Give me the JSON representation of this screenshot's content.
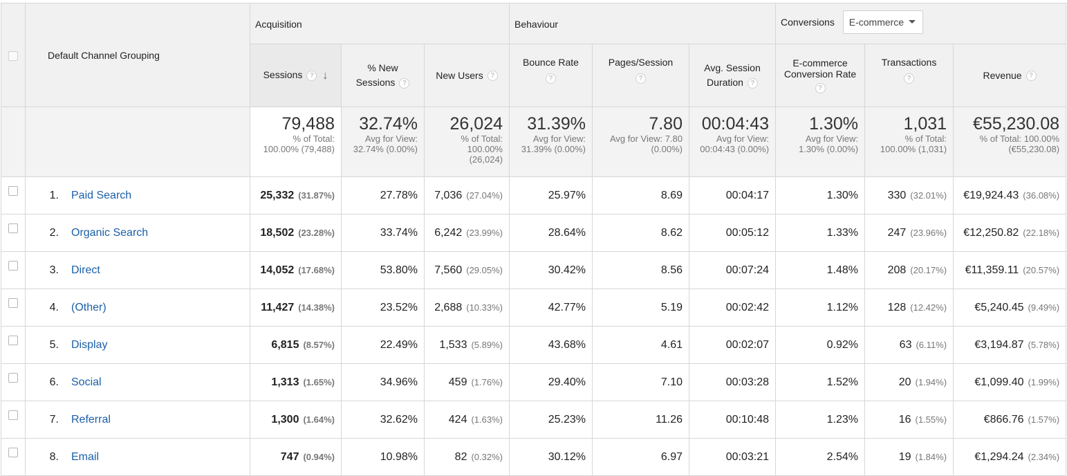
{
  "header": {
    "dimension_label": "Default Channel Grouping",
    "groups": {
      "acquisition": "Acquisition",
      "behaviour": "Behaviour",
      "conversions": "Conversions",
      "conversions_select": "E-commerce"
    },
    "columns": {
      "sessions": "Sessions",
      "pct_new_sessions_1": "% New",
      "pct_new_sessions_2": "Sessions",
      "new_users": "New Users",
      "bounce_rate": "Bounce Rate",
      "pages_session": "Pages/Session",
      "avg_duration_1": "Avg. Session",
      "avg_duration_2": "Duration",
      "ecom_rate_1": "E-commerce",
      "ecom_rate_2": "Conversion Rate",
      "transactions": "Transactions",
      "revenue": "Revenue"
    },
    "help_glyph": "?",
    "sort_glyph": "↓"
  },
  "totals": {
    "sessions": {
      "value": "79,488",
      "l1": "% of Total:",
      "l2": "100.00% (79,488)"
    },
    "pct_new_sessions": {
      "value": "32.74%",
      "l1": "Avg for View:",
      "l2": "32.74% (0.00%)"
    },
    "new_users": {
      "value": "26,024",
      "l1": "% of Total:",
      "l2": "100.00%",
      "l3": "(26,024)"
    },
    "bounce_rate": {
      "value": "31.39%",
      "l1": "Avg for View:",
      "l2": "31.39% (0.00%)"
    },
    "pages_session": {
      "value": "7.80",
      "l1": "Avg for View: 7.80",
      "l2": "(0.00%)"
    },
    "avg_duration": {
      "value": "00:04:43",
      "l1": "Avg for View:",
      "l2": "00:04:43 (0.00%)"
    },
    "ecom_rate": {
      "value": "1.30%",
      "l1": "Avg for View:",
      "l2": "1.30% (0.00%)"
    },
    "transactions": {
      "value": "1,031",
      "l1": "% of Total:",
      "l2": "100.00% (1,031)"
    },
    "revenue": {
      "value": "€55,230.08",
      "l1": "% of Total: 100.00%",
      "l2": "(€55,230.08)"
    }
  },
  "rows": [
    {
      "idx": "1.",
      "channel": "Paid Search",
      "sessions": "25,332",
      "sessions_pct": "(31.87%)",
      "pct_new": "27.78%",
      "new_users": "7,036",
      "new_users_pct": "(27.04%)",
      "bounce": "25.97%",
      "pages": "8.69",
      "duration": "00:04:17",
      "ecom": "1.30%",
      "trans": "330",
      "trans_pct": "(32.01%)",
      "revenue": "€19,924.43",
      "revenue_pct": "(36.08%)"
    },
    {
      "idx": "2.",
      "channel": "Organic Search",
      "sessions": "18,502",
      "sessions_pct": "(23.28%)",
      "pct_new": "33.74%",
      "new_users": "6,242",
      "new_users_pct": "(23.99%)",
      "bounce": "28.64%",
      "pages": "8.62",
      "duration": "00:05:12",
      "ecom": "1.33%",
      "trans": "247",
      "trans_pct": "(23.96%)",
      "revenue": "€12,250.82",
      "revenue_pct": "(22.18%)"
    },
    {
      "idx": "3.",
      "channel": "Direct",
      "sessions": "14,052",
      "sessions_pct": "(17.68%)",
      "pct_new": "53.80%",
      "new_users": "7,560",
      "new_users_pct": "(29.05%)",
      "bounce": "30.42%",
      "pages": "8.56",
      "duration": "00:07:24",
      "ecom": "1.48%",
      "trans": "208",
      "trans_pct": "(20.17%)",
      "revenue": "€11,359.11",
      "revenue_pct": "(20.57%)"
    },
    {
      "idx": "4.",
      "channel": "(Other)",
      "sessions": "11,427",
      "sessions_pct": "(14.38%)",
      "pct_new": "23.52%",
      "new_users": "2,688",
      "new_users_pct": "(10.33%)",
      "bounce": "42.77%",
      "pages": "5.19",
      "duration": "00:02:42",
      "ecom": "1.12%",
      "trans": "128",
      "trans_pct": "(12.42%)",
      "revenue": "€5,240.45",
      "revenue_pct": "(9.49%)"
    },
    {
      "idx": "5.",
      "channel": "Display",
      "sessions": "6,815",
      "sessions_pct": "(8.57%)",
      "pct_new": "22.49%",
      "new_users": "1,533",
      "new_users_pct": "(5.89%)",
      "bounce": "43.68%",
      "pages": "4.61",
      "duration": "00:02:07",
      "ecom": "0.92%",
      "trans": "63",
      "trans_pct": "(6.11%)",
      "revenue": "€3,194.87",
      "revenue_pct": "(5.78%)"
    },
    {
      "idx": "6.",
      "channel": "Social",
      "sessions": "1,313",
      "sessions_pct": "(1.65%)",
      "pct_new": "34.96%",
      "new_users": "459",
      "new_users_pct": "(1.76%)",
      "bounce": "29.40%",
      "pages": "7.10",
      "duration": "00:03:28",
      "ecom": "1.52%",
      "trans": "20",
      "trans_pct": "(1.94%)",
      "revenue": "€1,099.40",
      "revenue_pct": "(1.99%)"
    },
    {
      "idx": "7.",
      "channel": "Referral",
      "sessions": "1,300",
      "sessions_pct": "(1.64%)",
      "pct_new": "32.62%",
      "new_users": "424",
      "new_users_pct": "(1.63%)",
      "bounce": "25.23%",
      "pages": "11.26",
      "duration": "00:10:48",
      "ecom": "1.23%",
      "trans": "16",
      "trans_pct": "(1.55%)",
      "revenue": "€866.76",
      "revenue_pct": "(1.57%)"
    },
    {
      "idx": "8.",
      "channel": "Email",
      "sessions": "747",
      "sessions_pct": "(0.94%)",
      "pct_new": "10.98%",
      "new_users": "82",
      "new_users_pct": "(0.32%)",
      "bounce": "30.12%",
      "pages": "6.97",
      "duration": "00:03:21",
      "ecom": "2.54%",
      "trans": "19",
      "trans_pct": "(1.84%)",
      "revenue": "€1,294.24",
      "revenue_pct": "(2.34%)"
    }
  ]
}
